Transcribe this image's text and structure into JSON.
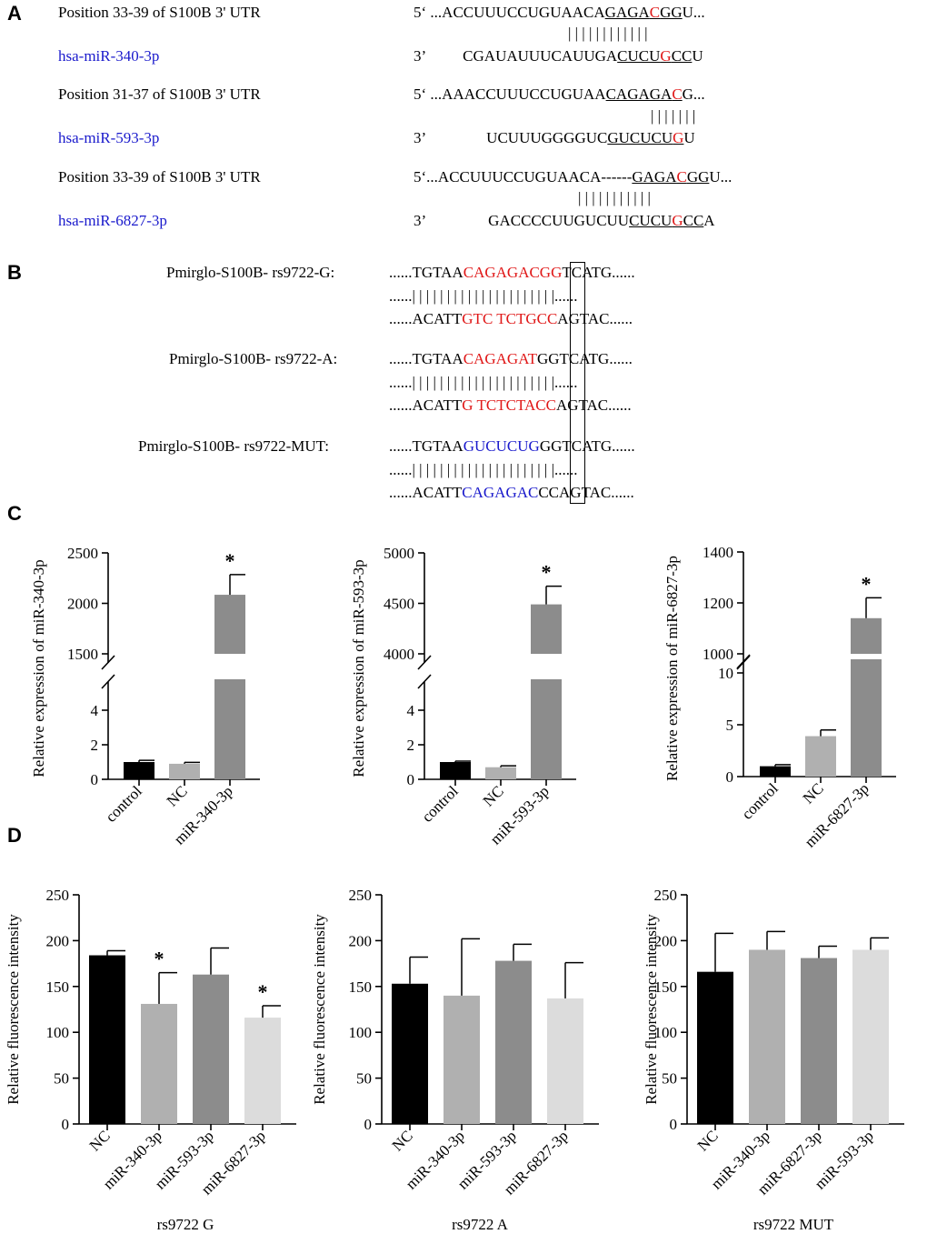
{
  "panels": {
    "A": {
      "letter": "A",
      "rows": [
        {
          "label": "Position 33-39 of S100B 3' UTR",
          "end5": "5‘",
          "seq_pre": "...ACCUUUCCUGUAACA",
          "seq_u1": "GAGA",
          "seq_red": "C",
          "seq_u2": "GG",
          "seq_post": "U...",
          "bars": "| | | | |   | | | | | | |",
          "mir_label": "hsa-miR-340-3p",
          "end3": "3’",
          "mir_pre": "CGAUAUUUCAUUGA",
          "mir_u1": "CUCU",
          "mir_red": "G",
          "mir_u2": "CC",
          "mir_post": "U"
        },
        {
          "label": "Position 31-37 of S100B 3' UTR",
          "end5": "5‘",
          "seq_pre": "...AAACCUUUCCUGUAA",
          "seq_u1": "CAGAGA",
          "seq_red": "C",
          "seq_u2": "",
          "seq_post": "G...",
          "bars": "| | | | | | |",
          "mir_label": "hsa-miR-593-3p",
          "end3": "3’",
          "mir_pre": "UCUUUGGGGUC",
          "mir_u1": "GUCUCU",
          "mir_red": "G",
          "mir_u2": "",
          "mir_post": "U"
        },
        {
          "label": "Position 33-39 of S100B 3' UTR",
          "end5": "5‘",
          "seq_pre": "...ACCUUUCCUGUAACA------",
          "seq_u1": "GAGA",
          "seq_red": "C",
          "seq_u2": "GG",
          "seq_post": "U...",
          "bars": "| | | |     | | | | | | |",
          "mir_label": "hsa-miR-6827-3p",
          "end3": "3’",
          "mir_pre": "GACCCCUUGUCUU",
          "mir_u1": "CUCU",
          "mir_red": "G",
          "mir_u2": "CC",
          "mir_post": "A"
        }
      ]
    },
    "B": {
      "letter": "B",
      "rows": [
        {
          "label": "Pmirglo-S100B- rs9722-G:",
          "top": [
            "......TGTAA",
            "CAGAGACGG",
            "TCATG......"
          ],
          "top_color": "red",
          "mid": "......| | | | | | | | | | | | | | | | | | | | |......",
          "bot": [
            "......ACATT",
            "GTC TCTGCC",
            "AGTAC......"
          ],
          "bot_color": "red"
        },
        {
          "label": "Pmirglo-S100B- rs9722-A:",
          "top": [
            "......TGTAA",
            "CAGAGAT",
            "GGTCATG......"
          ],
          "top_color": "red",
          "mid": "......| | | | | | | | | | | | | | | | | | | | |......",
          "bot": [
            "......ACATT",
            "G TCTCTACC",
            "AGTAC......"
          ],
          "bot_color": "red"
        },
        {
          "label": "Pmirglo-S100B- rs9722-MUT:",
          "top": [
            "......TGTAA",
            "GUCUCUG",
            "GGTCATG......"
          ],
          "top_color": "blue",
          "mid": "......| | | | | | | | | | | | | | | | | | | | |......",
          "bot": [
            "......ACATT",
            "CAGAGAC",
            "CCAGTAC......"
          ],
          "bot_color": "blue"
        }
      ]
    },
    "C": {
      "letter": "C"
    },
    "D": {
      "letter": "D"
    }
  },
  "chart_data": [
    {
      "type": "bar",
      "panel": "C",
      "ylabel": "Relative expression of miR-340-3p",
      "categories": [
        "control",
        "NC",
        "miR-340-3p"
      ],
      "values": [
        1.0,
        0.9,
        2085
      ],
      "errors": [
        0.1,
        0.08,
        200
      ],
      "colors": [
        "#000000",
        "#b0b0b0",
        "#8c8c8c"
      ],
      "significant": [
        false,
        false,
        true
      ],
      "axis_break": {
        "lower": [
          0,
          5
        ],
        "upper": [
          1500,
          2500
        ]
      },
      "lower_ticks": [
        "0",
        "2",
        "4"
      ],
      "upper_ticks": [
        "1500",
        "2000",
        "2500"
      ]
    },
    {
      "type": "bar",
      "panel": "C",
      "ylabel": "Relative expression of miR-593-3p",
      "categories": [
        "control",
        "NC",
        "miR-593-3p"
      ],
      "values": [
        1.0,
        0.7,
        4490
      ],
      "errors": [
        0.05,
        0.08,
        180
      ],
      "colors": [
        "#000000",
        "#b0b0b0",
        "#8c8c8c"
      ],
      "significant": [
        false,
        false,
        true
      ],
      "axis_break": {
        "lower": [
          0,
          5
        ],
        "upper": [
          4000,
          5000
        ]
      },
      "lower_ticks": [
        "0",
        "2",
        "4"
      ],
      "upper_ticks": [
        "4000",
        "4500",
        "5000"
      ]
    },
    {
      "type": "bar",
      "panel": "C",
      "ylabel": "Relative expression of miR-6827-3p",
      "categories": [
        "control",
        "NC",
        "miR-6827-3p"
      ],
      "values": [
        1.0,
        3.9,
        1140
      ],
      "errors": [
        0.15,
        0.6,
        80
      ],
      "colors": [
        "#000000",
        "#b0b0b0",
        "#8c8c8c"
      ],
      "significant": [
        false,
        false,
        true
      ],
      "axis_break": {
        "lower": [
          0,
          10
        ],
        "upper": [
          1000,
          1400
        ]
      },
      "lower_ticks": [
        "0",
        "5",
        "10"
      ],
      "upper_ticks": [
        "1000",
        "1200",
        "1400"
      ]
    },
    {
      "type": "bar",
      "panel": "D",
      "title": "rs9722 G",
      "ylabel": "Relative fluorescence intensity",
      "categories": [
        "NC",
        "miR-340-3p",
        "miR-593-3p",
        "miR-6827-3p"
      ],
      "values": [
        184,
        131,
        163,
        116
      ],
      "errors": [
        5,
        34,
        29,
        13
      ],
      "colors": [
        "#000000",
        "#b0b0b0",
        "#8c8c8c",
        "#dcdcdc"
      ],
      "significant": [
        false,
        true,
        false,
        true
      ],
      "ylim": [
        0,
        250
      ],
      "yticks": [
        "0",
        "50",
        "100",
        "150",
        "200",
        "250"
      ]
    },
    {
      "type": "bar",
      "panel": "D",
      "title": "rs9722 A",
      "ylabel": "Relative fluorescence intensity",
      "categories": [
        "NC",
        "miR-340-3p",
        "miR-593-3p",
        "miR-6827-3p"
      ],
      "values": [
        153,
        140,
        178,
        137
      ],
      "errors": [
        29,
        62,
        18,
        39
      ],
      "colors": [
        "#000000",
        "#b0b0b0",
        "#8c8c8c",
        "#dcdcdc"
      ],
      "significant": [
        false,
        false,
        false,
        false
      ],
      "ylim": [
        0,
        250
      ],
      "yticks": [
        "0",
        "50",
        "100",
        "150",
        "200",
        "250"
      ]
    },
    {
      "type": "bar",
      "panel": "D",
      "title": "rs9722 MUT",
      "ylabel": "Relative fluorescence intensity",
      "categories": [
        "NC",
        "miR-340-3p",
        "miR-6827-3p",
        "miR-593-3p"
      ],
      "values": [
        166,
        190,
        181,
        190
      ],
      "errors": [
        42,
        20,
        13,
        13
      ],
      "colors": [
        "#000000",
        "#b0b0b0",
        "#8c8c8c",
        "#dcdcdc"
      ],
      "significant": [
        false,
        false,
        false,
        false
      ],
      "ylim": [
        0,
        250
      ],
      "yticks": [
        "0",
        "50",
        "100",
        "150",
        "200",
        "250"
      ]
    }
  ],
  "sig_marker": "*"
}
